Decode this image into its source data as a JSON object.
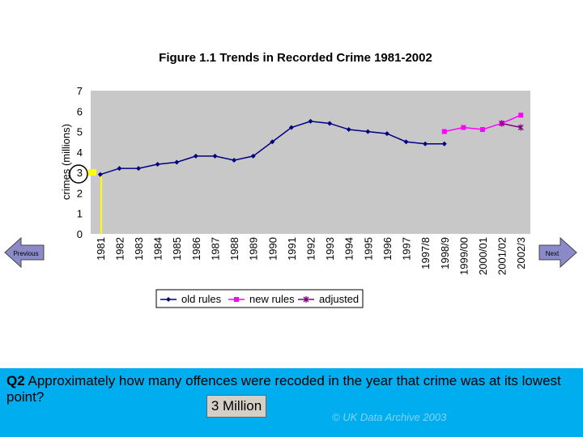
{
  "chart_data": {
    "type": "line",
    "title": "Figure 1.1 Trends in Recorded Crime 1981-2002",
    "y_label": "crimes (millions)",
    "categories": [
      "1981",
      "1982",
      "1983",
      "1984",
      "1985",
      "1986",
      "1987",
      "1988",
      "1989",
      "1990",
      "1991",
      "1992",
      "1993",
      "1994",
      "1995",
      "1996",
      "1997",
      "1997/8",
      "1998/9",
      "1999/00",
      "2000/01",
      "2001/02",
      "2002/3"
    ],
    "series": [
      {
        "name": "old rules",
        "color": "#000080",
        "marker": "diamond",
        "values": [
          2.9,
          3.2,
          3.2,
          3.4,
          3.5,
          3.8,
          3.8,
          3.6,
          3.8,
          4.5,
          5.2,
          5.5,
          5.4,
          5.1,
          5.0,
          4.9,
          4.5,
          4.4,
          4.4,
          null,
          null,
          null,
          null
        ]
      },
      {
        "name": "new rules",
        "color": "#ff00ff",
        "marker": "square",
        "values": [
          null,
          null,
          null,
          null,
          null,
          null,
          null,
          null,
          null,
          null,
          null,
          null,
          null,
          null,
          null,
          null,
          null,
          null,
          5.0,
          5.2,
          5.1,
          5.4,
          5.8
        ]
      },
      {
        "name": "adjusted",
        "color": "#800080",
        "marker": "star",
        "values": [
          null,
          null,
          null,
          null,
          null,
          null,
          null,
          null,
          null,
          null,
          null,
          null,
          null,
          null,
          null,
          null,
          null,
          null,
          null,
          null,
          null,
          5.4,
          5.2
        ]
      }
    ],
    "ylim": [
      0,
      7
    ],
    "yticks": [
      0,
      1,
      2,
      3,
      4,
      5,
      6,
      7
    ],
    "grid": false,
    "plot_color": "#c8c8c8",
    "legend": "bottom"
  },
  "question": {
    "number": "Q2",
    "text": "Approximately how many offences were recoded in the year that crime was at its lowest point?"
  },
  "answer": "3 Million",
  "footer": "© UK Data Archive 2003",
  "nav": {
    "previous": "Previous",
    "next": "Next"
  }
}
